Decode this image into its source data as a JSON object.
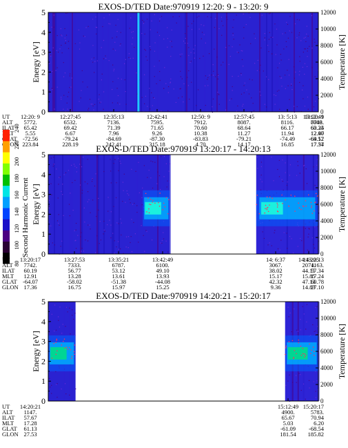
{
  "chart_data": [
    {
      "type": "heatmap",
      "title": "EXOS-D/TED   Date:970919  12:20: 9 - 13:20: 9",
      "ylabel": "Energy [eV]",
      "y2label": "Temperature [K]",
      "ylim": [
        0,
        5
      ],
      "y2lim": [
        0,
        12000
      ],
      "yticks": [
        "0",
        "1",
        "2",
        "3",
        "4",
        "5"
      ],
      "y2ticks": [
        "0",
        "2000",
        "4000",
        "6000",
        "8000",
        "10000",
        "12000"
      ],
      "coverage": [
        [
          0,
          1
        ]
      ],
      "bright_stripe_at": 0.33,
      "table": {
        "row_labels": [
          "UT",
          "ALT",
          "ILAT",
          "MLT",
          "GLAT",
          "GLON"
        ],
        "columns": [
          [
            "12:20: 9",
            "5772.",
            "65.42",
            "5.55",
            "-72.56",
            "223.84"
          ],
          [
            "12:27:45",
            "6532.",
            "69.42",
            "6.67",
            "-79.24",
            "228.19"
          ],
          [
            "12:35:13",
            "7136.",
            "71.39",
            "7.96",
            "-84.69",
            "242.41"
          ],
          [
            "12:42:41",
            "7595.",
            "71.65",
            "9.26",
            "-87.30",
            "315.18"
          ],
          [
            "12:50: 9",
            "7912.",
            "70.60",
            "10.38",
            "-83.83",
            "4.70"
          ],
          [
            "12:57:45",
            "8087.",
            "68.64",
            "11.27",
            "-79.21",
            "14.17"
          ],
          [
            "13: 5:13",
            "8116.",
            "66.17",
            "11.94",
            "-74.49",
            "16.85"
          ],
          [
            "13:12:41",
            "8003.",
            "63.34",
            "12.47",
            "-69.52",
            "17.54"
          ],
          [
            "13:20: 9",
            "7748.",
            "60.25",
            "12.90",
            "-64.17",
            "17.37"
          ]
        ]
      }
    },
    {
      "type": "heatmap",
      "title": "EXOS-D/TED   Date:970919  13:20:17 - 14:20:13",
      "ylabel": "Energy [eV]",
      "y2label": "Temperature [K]",
      "ylim": [
        0,
        5
      ],
      "y2lim": [
        0,
        12000
      ],
      "yticks": [
        "0",
        "1",
        "2",
        "3",
        "4",
        "5"
      ],
      "y2ticks": [
        "0",
        "2000",
        "4000",
        "6000",
        "8000",
        "10000",
        "12000"
      ],
      "coverage": [
        [
          0,
          0.45
        ],
        [
          0.77,
          1
        ]
      ],
      "band_energy_ev": 2.3,
      "table": {
        "row_labels": [
          "UT",
          "ALT",
          "ILAT",
          "MLT",
          "GLAT",
          "GLON"
        ],
        "columns": [
          [
            "13:20:17",
            "7742.",
            "60.19",
            "12.91",
            "-64.07",
            "17.36"
          ],
          [
            "13:27:53",
            "7333.",
            "56.77",
            "13.28",
            "-58.02",
            "16.75"
          ],
          [
            "13:35:21",
            "6787.",
            "53.12",
            "13.61",
            "-51.38",
            "15.97"
          ],
          [
            "13:42:49",
            "6100.",
            "49.10",
            "13.93",
            "-44.08",
            "15.25"
          ],
          [
            "14: 6:37",
            "3067.",
            "38.02",
            "15.17",
            "42.32",
            "9.36"
          ],
          [
            "14:13:25",
            "2074.",
            "44.15",
            "15.85",
            "47.13",
            "14.83"
          ],
          [
            "14:20:13",
            "1163.",
            "57.34",
            "17.24",
            "60.78",
            "27.10"
          ]
        ]
      }
    },
    {
      "type": "heatmap",
      "title": "EXOS-D/TED   Date:970919  14:20:21 - 15:20:17",
      "ylabel": "Energy [eV]",
      "y2label": "Temperature [K]",
      "ylim": [
        0,
        5
      ],
      "y2lim": [
        0,
        12000
      ],
      "yticks": [
        "0",
        "1",
        "2",
        "3",
        "4",
        "5"
      ],
      "y2ticks": [
        "0",
        "2000",
        "4000",
        "6000",
        "8000",
        "10000",
        "12000"
      ],
      "coverage": [
        [
          0,
          0.1
        ],
        [
          0.877,
          1
        ]
      ],
      "band_energy_ev": 2.4,
      "table": {
        "row_labels": [
          "UT",
          "ALT",
          "ILAT",
          "MLT",
          "GLAT",
          "GLON"
        ],
        "columns": [
          [
            "14:20:21",
            "1147.",
            "57.67",
            "17.28",
            "61.13",
            "27.53"
          ],
          [
            "15:12:49",
            "4900.",
            "65.67",
            "5.03",
            "-61.09",
            "181.54"
          ],
          [
            "15:20:17",
            "5783.",
            "70.94",
            "6.20",
            "-68.54",
            "185.82"
          ]
        ]
      }
    }
  ],
  "colorbar": {
    "label": "Second Harmonic Current",
    "min": 80,
    "max": 240,
    "ticks": [
      "80",
      "100",
      "120",
      "140",
      "160",
      "180",
      "200",
      "220",
      "240"
    ],
    "colors": [
      "#000000",
      "#2a0033",
      "#4b0082",
      "#1a10c8",
      "#0044ff",
      "#00a0ff",
      "#00e5e5",
      "#00c000",
      "#80ff00",
      "#ffff00",
      "#ffa000",
      "#ff2000"
    ]
  }
}
